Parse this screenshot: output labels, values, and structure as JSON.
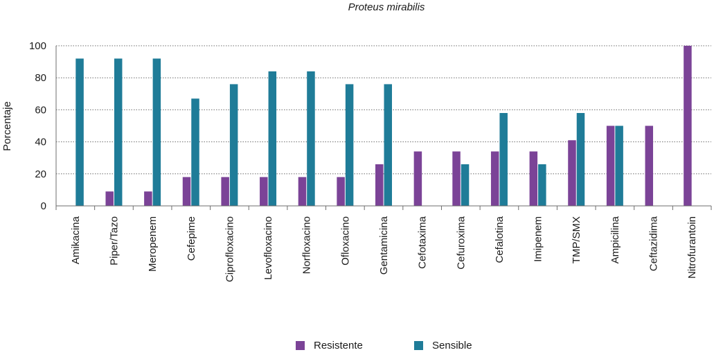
{
  "chart_data": {
    "type": "bar",
    "title": "Proteus mirabilis",
    "xlabel": "",
    "ylabel": "Porcentaje",
    "ylim": [
      0,
      100
    ],
    "yticks": [
      0,
      20,
      40,
      60,
      80,
      100
    ],
    "grid": "horizontal dotted",
    "legend_position": "bottom",
    "categories": [
      "Amikacina",
      "Piper/Tazo",
      "Meropenem",
      "Cefepime",
      "Ciprofloxacino",
      "Levofloxacino",
      "Norfloxacino",
      "Ofloxacino",
      "Gentamicina",
      "Cefotaxima",
      "Cefuroxima",
      "Cefalotina",
      "Imipenem",
      "TMP/SMX",
      "Ampicilina",
      "Ceftazidima",
      "Nitrofurantoin"
    ],
    "series": [
      {
        "name": "Resistente",
        "color": "#7b4397",
        "values": [
          0,
          9,
          9,
          18,
          18,
          18,
          18,
          18,
          26,
          34,
          34,
          34,
          34,
          41,
          50,
          50,
          100
        ]
      },
      {
        "name": "Sensible",
        "color": "#1f7c98",
        "values": [
          92,
          92,
          92,
          67,
          76,
          84,
          84,
          76,
          76,
          0,
          26,
          58,
          26,
          58,
          50,
          0,
          0
        ]
      }
    ]
  }
}
